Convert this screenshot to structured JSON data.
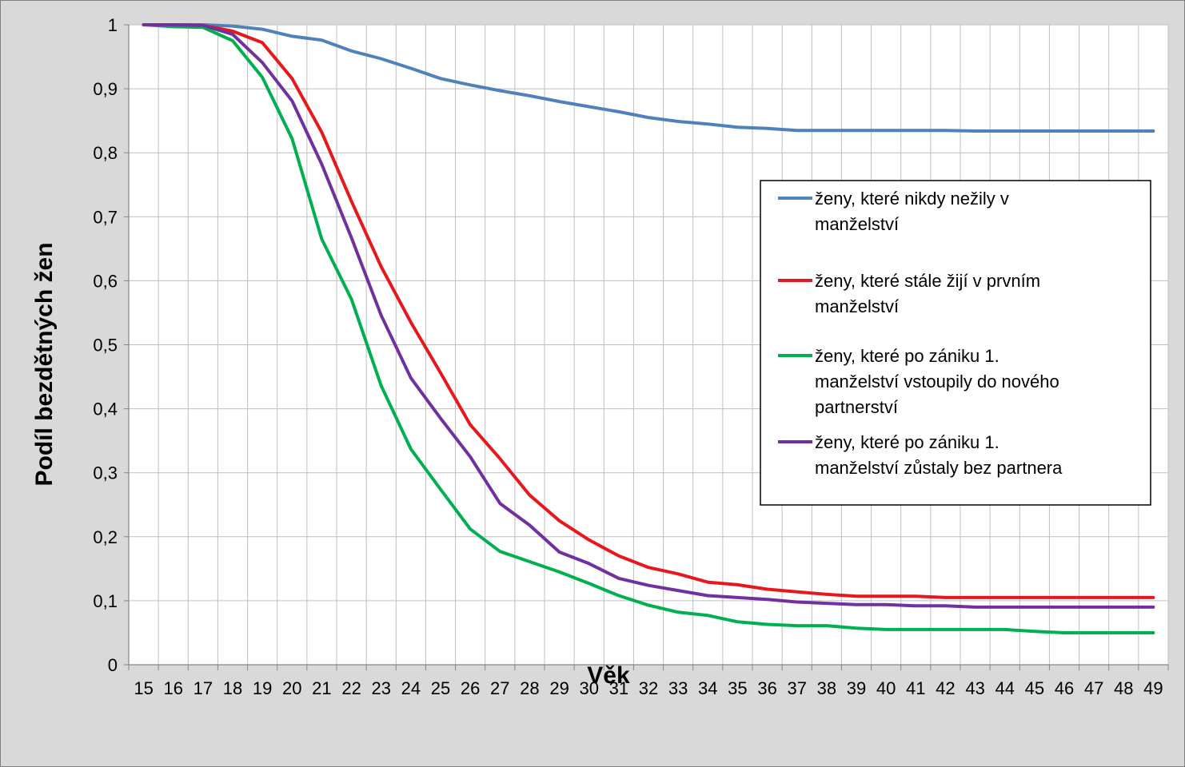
{
  "chart_data": {
    "type": "line",
    "xlabel": "Věk",
    "ylabel": "Podíl bezdětných žen",
    "x": [
      15,
      16,
      17,
      18,
      19,
      20,
      21,
      22,
      23,
      24,
      25,
      26,
      27,
      28,
      29,
      30,
      31,
      32,
      33,
      34,
      35,
      36,
      37,
      38,
      39,
      40,
      41,
      42,
      43,
      44,
      45,
      46,
      47,
      48,
      49
    ],
    "ylim": [
      0,
      1
    ],
    "yticks": [
      0,
      0.1,
      0.2,
      0.3,
      0.4,
      0.5,
      0.6,
      0.7,
      0.8,
      0.9,
      1
    ],
    "ytick_labels": [
      "0",
      "0,1",
      "0,2",
      "0,3",
      "0,4",
      "0,5",
      "0,6",
      "0,7",
      "0,8",
      "0,9",
      "1"
    ],
    "grid": true,
    "legend_position": "right",
    "series": [
      {
        "name": "ženy, které nikdy nežily v manželství",
        "name_lines": [
          "ženy, které nikdy nežily v",
          "manželství"
        ],
        "color": "#4f81bd",
        "values": [
          1.0,
          1.0,
          1.0,
          0.998,
          0.993,
          0.982,
          0.976,
          0.959,
          0.947,
          0.932,
          0.916,
          0.906,
          0.897,
          0.889,
          0.88,
          0.872,
          0.864,
          0.855,
          0.849,
          0.845,
          0.84,
          0.838,
          0.835,
          0.835,
          0.835,
          0.835,
          0.835,
          0.835,
          0.834,
          0.834,
          0.834,
          0.834,
          0.834,
          0.834,
          0.834
        ]
      },
      {
        "name": "ženy, které stále žijí v prvním manželství",
        "name_lines": [
          "ženy, které stále žijí v prvním",
          "manželství"
        ],
        "color": "#e8171c",
        "values": [
          1.0,
          1.0,
          0.999,
          0.99,
          0.972,
          0.916,
          0.832,
          0.724,
          0.622,
          0.535,
          0.456,
          0.375,
          0.322,
          0.265,
          0.225,
          0.195,
          0.17,
          0.152,
          0.142,
          0.129,
          0.125,
          0.118,
          0.114,
          0.11,
          0.107,
          0.107,
          0.107,
          0.105,
          0.105,
          0.105,
          0.105,
          0.105,
          0.105,
          0.105,
          0.105
        ]
      },
      {
        "name": "ženy, které po zániku 1. manželství vstoupily do nového partnerství",
        "name_lines": [
          "ženy, které po zániku 1.",
          "manželství vstoupily do nového",
          "partnerství"
        ],
        "color": "#00b050",
        "values": [
          1.0,
          0.997,
          0.996,
          0.975,
          0.918,
          0.822,
          0.665,
          0.571,
          0.436,
          0.337,
          0.274,
          0.212,
          0.177,
          0.161,
          0.145,
          0.127,
          0.108,
          0.093,
          0.082,
          0.077,
          0.067,
          0.063,
          0.061,
          0.061,
          0.057,
          0.055,
          0.055,
          0.055,
          0.055,
          0.055,
          0.052,
          0.05,
          0.05,
          0.05,
          0.05
        ]
      },
      {
        "name": "ženy, které po zániku 1. manželství zůstaly bez partnera",
        "name_lines": [
          "ženy, které po zániku 1.",
          "manželství zůstaly bez partnera"
        ],
        "color": "#7030a0",
        "values": [
          1.0,
          1.0,
          0.999,
          0.985,
          0.941,
          0.881,
          0.782,
          0.667,
          0.546,
          0.448,
          0.385,
          0.325,
          0.252,
          0.218,
          0.176,
          0.158,
          0.135,
          0.124,
          0.116,
          0.108,
          0.105,
          0.102,
          0.098,
          0.096,
          0.094,
          0.094,
          0.092,
          0.092,
          0.09,
          0.09,
          0.09,
          0.09,
          0.09,
          0.09,
          0.09
        ]
      }
    ]
  }
}
